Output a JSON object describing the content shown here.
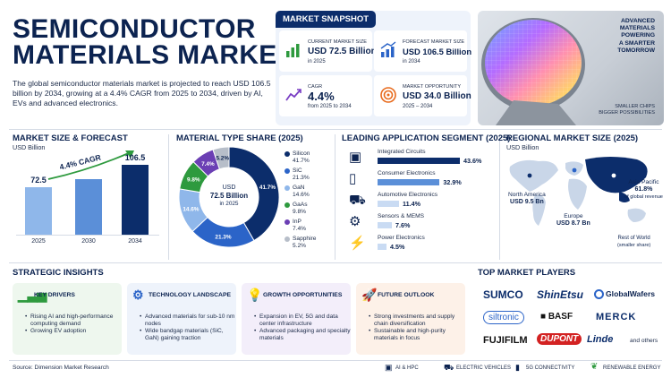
{
  "header": {
    "title_line1": "SEMICONDUCTOR",
    "title_line2": "MATERIALS MARKET",
    "intro": "The global semiconductor materials market is projected to reach USD 106.5 billion by 2034, growing at a 4.4% CAGR from 2025 to 2034, driven by AI, EVs and advanced electronics."
  },
  "snapshot": {
    "tag": "MARKET SNAPSHOT",
    "cards": [
      {
        "label": "CURRENT MARKET SIZE",
        "value": "USD 72.5 Billion",
        "sub": "in 2025",
        "icon": "bar-chart-icon",
        "color": "#2e9a3e"
      },
      {
        "label": "FORECAST MARKET SIZE",
        "value": "USD 106.5 Billion",
        "sub": "in 2034",
        "icon": "growth-chart-icon",
        "color": "#2b64c8"
      },
      {
        "label": "CAGR",
        "value": "4.4%",
        "sub": "from 2025 to 2034",
        "icon": "trend-line-icon",
        "color": "#7a3fc4"
      },
      {
        "label": "MARKET OPPORTUNITY",
        "value": "USD 34.0 Billion",
        "sub": "2025 – 2034",
        "icon": "target-icon",
        "color": "#e86a1c"
      }
    ]
  },
  "hero": {
    "tagline_1": "ADVANCED",
    "tagline_2": "MATERIALS",
    "tagline_3": "POWERING",
    "tagline_4": "A SMARTER",
    "tagline_5": "TOMORROW",
    "caption_1": "SMALLER CHIPS",
    "caption_2": "BIGGER POSSIBILITIES"
  },
  "forecast": {
    "title": "MARKET SIZE & FORECAST",
    "unit": "USD Billion",
    "cagr_label": "4.4% CAGR",
    "chart_data": {
      "type": "bar",
      "categories": [
        "2025",
        "2030",
        "2034"
      ],
      "values": [
        72.5,
        85.2,
        106.5
      ],
      "labels": [
        "72.5",
        "",
        "106.5"
      ],
      "ylabel": "USD Billion"
    }
  },
  "material": {
    "title": "MATERIAL TYPE SHARE (2025)",
    "center_1": "USD",
    "center_2": "72.5 Billion",
    "center_3": "in 2025",
    "chart_data": {
      "type": "pie",
      "categories": [
        "Silicon",
        "SiC",
        "GaN",
        "GaAs",
        "InP",
        "Sapphire"
      ],
      "values": [
        41.7,
        21.3,
        14.6,
        9.8,
        7.4,
        5.2
      ],
      "labels": [
        "41.7%",
        "21.3%",
        "14.6%",
        "9.8%",
        "7.4%",
        "5.2%"
      ],
      "colors": [
        "#0c2d6b",
        "#2b64c8",
        "#8fb7ea",
        "#2e9a3e",
        "#6b3fb4",
        "#b7bec9"
      ]
    }
  },
  "application": {
    "title": "LEADING APPLICATION SEGMENT (2025)",
    "chart_data": {
      "type": "bar",
      "categories": [
        "Integrated Circuits",
        "Consumer Electronics",
        "Automotive Electronics",
        "Sensors & MEMS",
        "Power Electronics"
      ],
      "values": [
        43.6,
        32.9,
        11.4,
        7.6,
        4.5
      ],
      "labels": [
        "43.6%",
        "32.9%",
        "11.4%",
        "7.6%",
        "4.5%"
      ],
      "icons": [
        "chip-icon",
        "smartphone-icon",
        "car-icon",
        "sensor-gear-icon",
        "lightning-icon"
      ]
    }
  },
  "regional": {
    "title": "REGIONAL MARKET SIZE (2025)",
    "unit": "USD Billion",
    "na_name": "North America",
    "na_value": "USD 9.5 Bn",
    "eu_name": "Europe",
    "eu_value": "USD 8.7 Bn",
    "ap_name": "Asia Pacific",
    "ap_share": "61.8%",
    "ap_note": "of global revenue",
    "row_name": "Rest of World",
    "row_note": "(smaller share)"
  },
  "insights": {
    "title": "STRATEGIC INSIGHTS",
    "cards": [
      {
        "head": "KEY DRIVERS",
        "icon": "rising-bars-icon",
        "color": "#2e9a3e",
        "bg": "#eef7ee",
        "items": [
          "Rising AI and high-performance computing demand",
          "Growing EV adoption"
        ]
      },
      {
        "head": "TECHNOLOGY LANDSCAPE",
        "icon": "gear-icon",
        "color": "#2b64c8",
        "bg": "#eef3fb",
        "items": [
          "Advanced materials for sub-10 nm nodes",
          "Wide bandgap materials (SiC, GaN) gaining traction"
        ]
      },
      {
        "head": "GROWTH OPPORTUNITIES",
        "icon": "lightbulb-icon",
        "color": "#7a3fc4",
        "bg": "#f3eefa",
        "items": [
          "Expansion in EV, 5G and data center infrastructure",
          "Advanced packaging and specialty materials"
        ]
      },
      {
        "head": "FUTURE OUTLOOK",
        "icon": "rocket-icon",
        "color": "#e86a1c",
        "bg": "#fdf1e8",
        "items": [
          "Strong investments and supply chain diversification",
          "Sustainable and high-purity materials in focus"
        ]
      }
    ]
  },
  "players": {
    "title": "TOP MARKET PLAYERS",
    "names": [
      "SUMCO",
      "ShinEtsu",
      "GlobalWafers",
      "siltronic",
      "BASF",
      "MERCK",
      "FUJIFILM",
      "DUPONT",
      "Linde"
    ],
    "others": "and others"
  },
  "footer": {
    "source": "Source: Dimension Market Research",
    "tags": [
      "AI & HPC",
      "ELECTRIC VEHICLES",
      "5G CONNECTIVITY",
      "RENEWABLE ENERGY"
    ]
  }
}
